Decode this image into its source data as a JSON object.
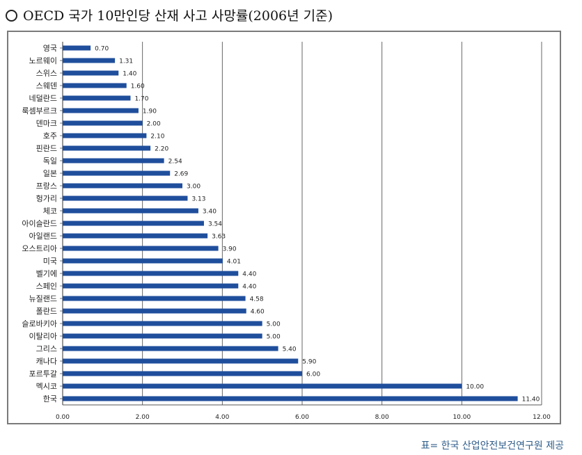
{
  "title": "OECD 국가 10만인당 산재 사고 사망률(2006년 기준)",
  "source": "표= 한국 산업안전보건연구원 제공",
  "colors": {
    "bar": "#1f4e9c",
    "grid": "#555555",
    "frame": "#7a7a7a"
  },
  "chart_data": {
    "type": "bar",
    "orientation": "horizontal",
    "title": "",
    "xlabel": "",
    "ylabel": "",
    "xlim": [
      0,
      12
    ],
    "x_ticks": [
      "0.00",
      "2.00",
      "4.00",
      "6.00",
      "8.00",
      "10.00",
      "12.00"
    ],
    "grid": "vertical",
    "categories": [
      "영국",
      "노르웨이",
      "스위스",
      "스웨덴",
      "네덜란드",
      "룩셈부르크",
      "덴마크",
      "호주",
      "핀란드",
      "독일",
      "일본",
      "프랑스",
      "헝가리",
      "체코",
      "아이슬란드",
      "아일랜드",
      "오스트리아",
      "미국",
      "벨기에",
      "스페인",
      "뉴질랜드",
      "폴란드",
      "슬로바키아",
      "이탈리아",
      "그리스",
      "캐나다",
      "포르투갈",
      "멕시코",
      "한국"
    ],
    "values": [
      0.7,
      1.31,
      1.4,
      1.6,
      1.7,
      1.9,
      2.0,
      2.1,
      2.2,
      2.54,
      2.69,
      3.0,
      3.13,
      3.4,
      3.54,
      3.63,
      3.9,
      4.01,
      4.4,
      4.4,
      4.58,
      4.6,
      5.0,
      5.0,
      5.4,
      5.9,
      6.0,
      10.0,
      11.4
    ],
    "value_labels": [
      "0.70",
      "1.31",
      "1.40",
      "1.60",
      "1.70",
      "1.90",
      "2.00",
      "2.10",
      "2.20",
      "2.54",
      "2.69",
      "3.00",
      "3.13",
      "3.40",
      "3.54",
      "3.63",
      "3.90",
      "4.01",
      "4.40",
      "4.40",
      "4.58",
      "4.60",
      "5.00",
      "5.00",
      "5.40",
      "5.90",
      "6.00",
      "10.00",
      "11.40"
    ]
  }
}
